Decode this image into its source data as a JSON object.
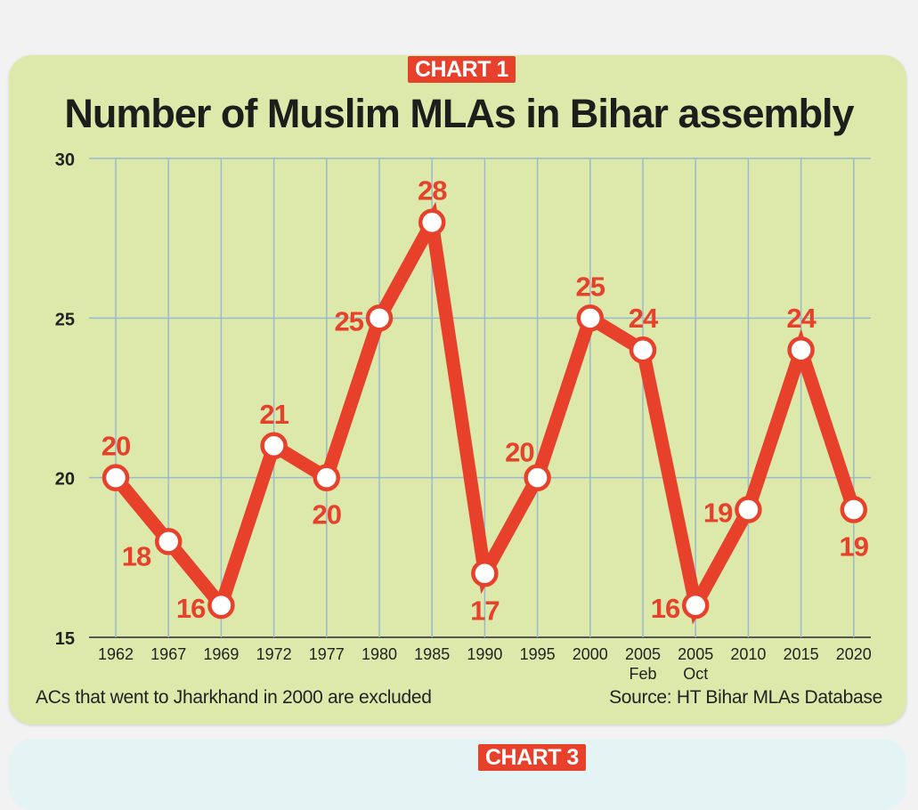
{
  "badges": {
    "chart1": "CHART 1",
    "chart3": "CHART 3"
  },
  "footnote": "ACs that went to Jharkhand in 2000 are excluded",
  "source": "Source: HT Bihar MLAs Database",
  "colors": {
    "line": "#e8412b",
    "background": "#dde9aa",
    "grid": "#9bb9cc",
    "label": "#e8412b"
  },
  "chart_data": {
    "type": "line",
    "title": "Number of Muslim MLAs in Bihar assembly",
    "xlabel": "",
    "ylabel": "",
    "ylim": [
      15,
      30
    ],
    "yticks": [
      15,
      20,
      25,
      30
    ],
    "grid": true,
    "categories": [
      [
        "1962"
      ],
      [
        "1967"
      ],
      [
        "1969"
      ],
      [
        "1972"
      ],
      [
        "1977"
      ],
      [
        "1980"
      ],
      [
        "1985"
      ],
      [
        "1990"
      ],
      [
        "1995"
      ],
      [
        "2000"
      ],
      [
        "2005",
        "Feb"
      ],
      [
        "2005",
        "Oct"
      ],
      [
        "2010"
      ],
      [
        "2015"
      ],
      [
        "2020"
      ]
    ],
    "values": [
      20,
      18,
      16,
      21,
      20,
      25,
      28,
      17,
      20,
      25,
      24,
      16,
      19,
      24,
      19
    ]
  }
}
